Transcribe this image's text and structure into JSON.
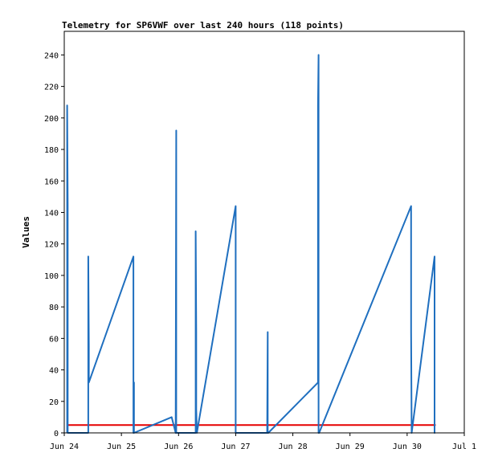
{
  "chart_data": {
    "type": "line",
    "title": "Telemetry for SP6VWF over last 240 hours (118 points)",
    "xlabel": "",
    "ylabel": "Values",
    "ylim": [
      0,
      255
    ],
    "xlim": [
      0,
      7.0
    ],
    "x_tick_labels": [
      "Jun 24",
      "Jun 25",
      "Jun 26",
      "Jun 27",
      "Jun 28",
      "Jun 29",
      "Jun 30",
      "Jul 1"
    ],
    "x_tick_values": [
      0,
      1,
      2,
      3,
      4,
      5,
      6,
      7
    ],
    "y_ticks": [
      0,
      20,
      40,
      60,
      80,
      100,
      120,
      140,
      160,
      180,
      200,
      220,
      240
    ],
    "grid": false,
    "colors": {
      "series": "#1f6fbf",
      "threshold": "#e60000",
      "frame": "#000000"
    },
    "threshold": {
      "value": 5
    },
    "series": [
      {
        "x": [
          0.05,
          0.05,
          0.06,
          0.06,
          0.07,
          0.07,
          0.42,
          0.42,
          0.43,
          0.43,
          1.21,
          1.21,
          1.22,
          1.22,
          1.88,
          1.95,
          1.96,
          1.96,
          1.97,
          2.3,
          2.3,
          2.31,
          2.31,
          2.32,
          3.0,
          3.0,
          3.01,
          3.55,
          3.56,
          3.56,
          3.57,
          4.44,
          4.44,
          4.45,
          4.45,
          4.46,
          6.07,
          6.07,
          6.08,
          6.08,
          6.48,
          6.48,
          6.49
        ],
        "y": [
          0,
          208,
          145,
          0,
          0,
          0,
          0,
          112,
          56,
          32,
          112,
          0,
          32,
          0,
          10,
          0,
          192,
          0,
          0,
          0,
          128,
          64,
          15,
          0,
          144,
          0,
          0,
          0,
          64,
          0,
          0,
          32,
          208,
          240,
          0,
          0,
          144,
          64,
          0,
          0,
          112,
          0,
          0
        ]
      }
    ]
  }
}
